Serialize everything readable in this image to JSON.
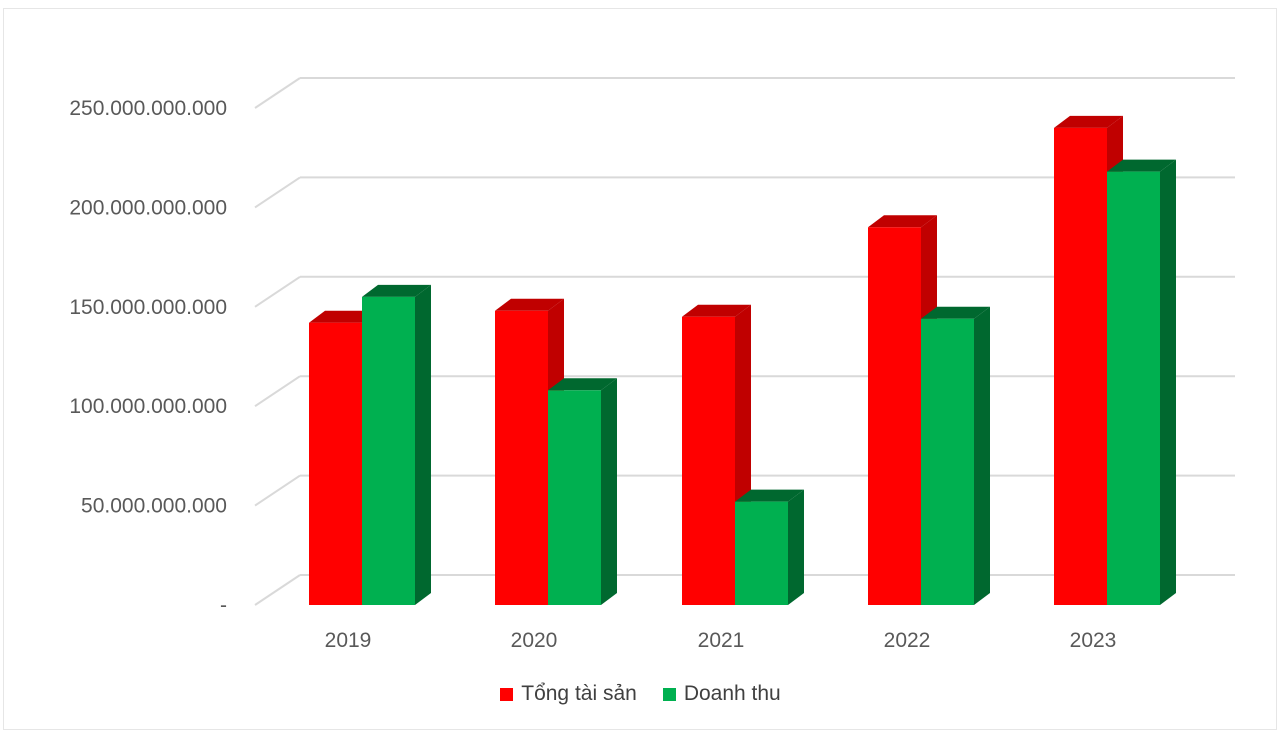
{
  "chart_data": {
    "type": "bar",
    "categories": [
      "2019",
      "2020",
      "2021",
      "2022",
      "2023"
    ],
    "series": [
      {
        "name": "Tổng tài sản",
        "values": [
          142000000000,
          148000000000,
          145000000000,
          190000000000,
          240000000000
        ],
        "color": "#ff0000",
        "side_color": "#c00000"
      },
      {
        "name": "Doanh thu",
        "values": [
          155000000000,
          108000000000,
          52000000000,
          144000000000,
          218000000000
        ],
        "color": "#00b050",
        "side_color": "#00682f"
      }
    ],
    "y_ticks": [
      "-",
      "50.000.000.000",
      "100.000.000.000",
      "150.000.000.000",
      "200.000.000.000",
      "250.000.000.000"
    ],
    "ylim": [
      0,
      250000000000
    ],
    "grid": true,
    "legend_position": "bottom",
    "style": "3d-clustered-column"
  }
}
